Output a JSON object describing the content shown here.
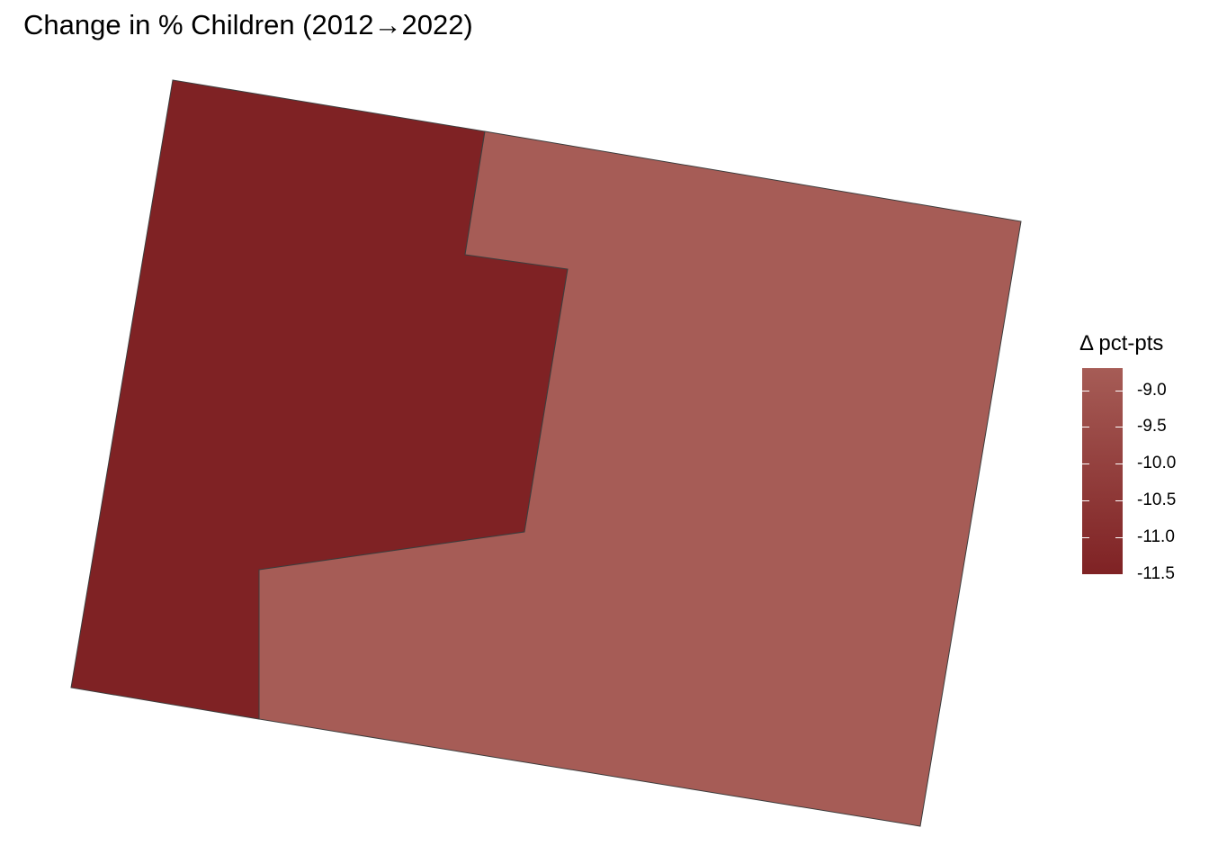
{
  "map": {
    "title": "Change in % Children (2012→2022)",
    "legend": {
      "title": "Δ pct-pts",
      "range": [
        -11.5,
        -8.7
      ],
      "ticks": [
        "-9.0",
        "-9.5",
        "-10.0",
        "-10.5",
        "-11.0",
        "-11.5"
      ],
      "tick_values": [
        -9.0,
        -9.5,
        -10.0,
        -10.5,
        -11.0,
        -11.5
      ],
      "color_low": "#7f2224",
      "color_high": "#a65c56"
    },
    "regions": [
      {
        "name": "west",
        "value": -11.5,
        "color": "#7f2224"
      },
      {
        "name": "east",
        "value": -8.8,
        "color": "#a65c56"
      }
    ],
    "border_color": "#3d3d3d"
  }
}
